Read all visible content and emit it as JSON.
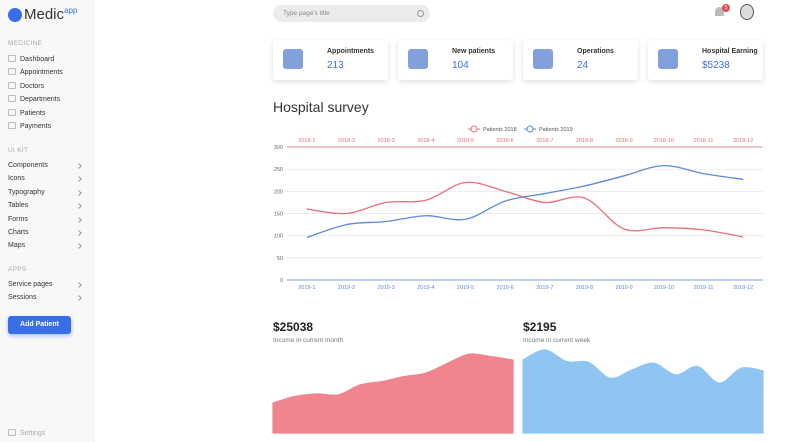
{
  "sidebar": {
    "brand": "Medic",
    "brand_sup": "app",
    "sections": [
      {
        "title": "MEDICINE",
        "items": [
          "Dashboard",
          "Appointments",
          "Doctors",
          "Departments",
          "Patients",
          "Payments"
        ]
      },
      {
        "title": "UI KIT",
        "items": [
          "Components",
          "Icons",
          "Typography",
          "Tables",
          "Forms",
          "Charts",
          "Maps"
        ]
      },
      {
        "title": "APPS",
        "items": [
          "Service pages",
          "Sessions"
        ]
      }
    ],
    "button": "Add Patient",
    "settings": "Settings"
  },
  "header": {
    "search_placeholder": "Type page's title",
    "notifications": 5
  },
  "stats": [
    {
      "label": "Appointments",
      "value": 213
    },
    {
      "label": "New patients",
      "value": 104
    },
    {
      "label": "Operations",
      "value": 24
    },
    {
      "label": "Hospital Earning",
      "value": "$5238"
    }
  ],
  "chart_data": [
    {
      "type": "line",
      "title": "Hospital survey",
      "categories": [
        "2019-1",
        "2019-2",
        "2019-3",
        "2019-4",
        "2019-5",
        "2019-6",
        "2019-7",
        "2019-8",
        "2019-9",
        "2019-10",
        "2019-11",
        "2019-12"
      ],
      "x2_categories": [
        "2018-1",
        "2018-2",
        "2018-3",
        "2018-4",
        "2018-5",
        "2018-6",
        "2018-7",
        "2018-8",
        "2018-9",
        "2018-10",
        "2018-11",
        "2018-12"
      ],
      "series": [
        {
          "name": "Patients 2018",
          "color": "#e8707a",
          "xaxis": "x2",
          "values": [
            160,
            150,
            175,
            180,
            220,
            200,
            175,
            185,
            115,
            118,
            113,
            97
          ]
        },
        {
          "name": "Patients 2019",
          "color": "#5b8bd9",
          "xaxis": "x",
          "values": [
            96,
            125,
            132,
            145,
            137,
            178,
            195,
            212,
            235,
            258,
            240,
            227
          ]
        }
      ],
      "ylim": [
        0,
        300
      ],
      "yticks": [
        0,
        50,
        100,
        150,
        200,
        250,
        300
      ],
      "grid": true,
      "legend": "top"
    },
    {
      "type": "area",
      "title": "$25038",
      "subtitle": "Income in current month",
      "color": "#f0848f",
      "values": [
        36,
        44,
        47,
        46,
        58,
        62,
        68,
        72,
        84,
        95,
        92,
        88
      ],
      "ylim": [
        0,
        100
      ]
    },
    {
      "type": "area",
      "title": "$2195",
      "subtitle": "Income in current week",
      "color": "#90c5f3",
      "values": [
        88,
        100,
        86,
        85,
        66,
        76,
        84,
        70,
        80,
        60,
        78,
        75
      ],
      "ylim": [
        0,
        100
      ]
    }
  ]
}
